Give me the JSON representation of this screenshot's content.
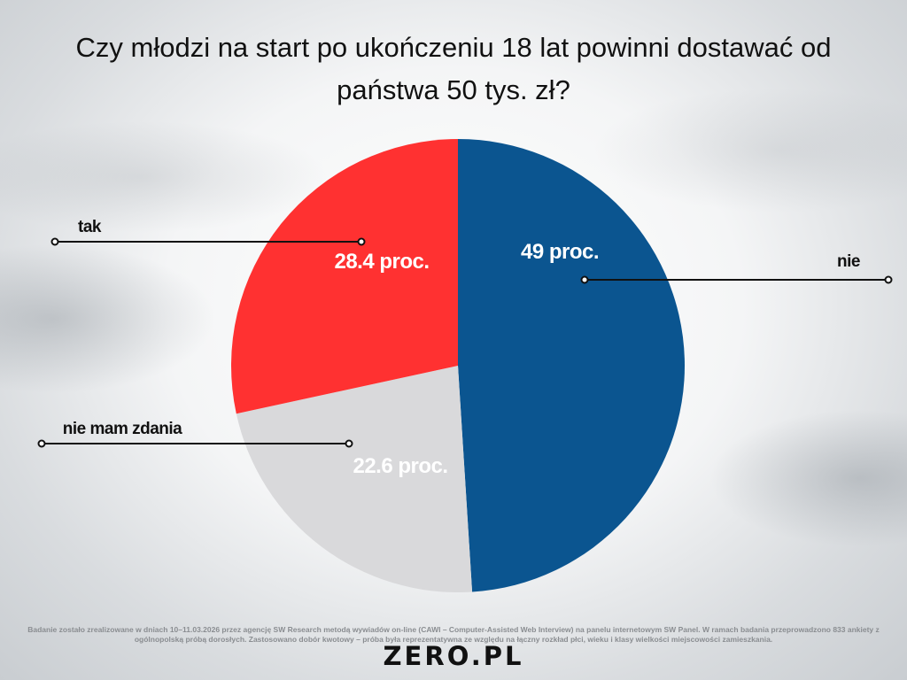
{
  "chart_data": {
    "type": "pie",
    "title": "Czy młodzi na start po ukończeniu 18 lat powinni dostawać od państwa 50 tys. zł?",
    "slices": [
      {
        "name": "nie",
        "value": 49,
        "label": "49 proc.",
        "color": "#0b5590"
      },
      {
        "name": "nie mam zdania",
        "value": 22.6,
        "label": "22.6 proc.",
        "color": "#d9d9db"
      },
      {
        "name": "tak",
        "value": 28.4,
        "label": "28.4 proc.",
        "color": "#ff3131"
      }
    ],
    "legend_placement": "callouts"
  },
  "footnote": "Badanie zostało zrealizowane w dniach 10–11.03.2026 przez agencję SW Research metodą wywiadów on-line (CAWI – Computer-Assisted Web Interview) na panelu internetowym SW Panel. W ramach badania przeprowadzono 833 ankiety z ogólnopolską próbą dorosłych. Zastosowano dobór kwotowy – próba była reprezentatywna ze względu na łączny rozkład płci, wieku i klasy wielkości miejscowości zamieszkania.",
  "logo": "ZERO.PL"
}
